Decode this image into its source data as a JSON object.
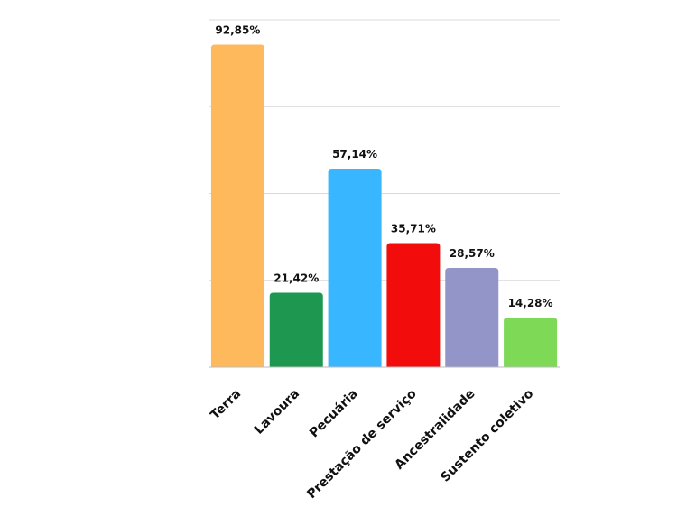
{
  "chart_data": {
    "type": "bar",
    "categories": [
      "Terra",
      "Lavoura",
      "Pecuária",
      "Prestação de serviço",
      "Ancestralidade",
      "Sustento coletivo"
    ],
    "values": [
      92.85,
      21.42,
      57.14,
      35.71,
      28.57,
      14.28
    ],
    "value_labels": [
      "92,85%",
      "21,42%",
      "57,14%",
      "35,71%",
      "28,57%",
      "14,28%"
    ],
    "colors": [
      "#fdb95b",
      "#1e9850",
      "#38b6ff",
      "#f20c0c",
      "#9394c8",
      "#7ed957"
    ],
    "ylim": [
      0,
      100
    ],
    "yticks": [
      0,
      25,
      50,
      75,
      100
    ],
    "grid": true
  }
}
